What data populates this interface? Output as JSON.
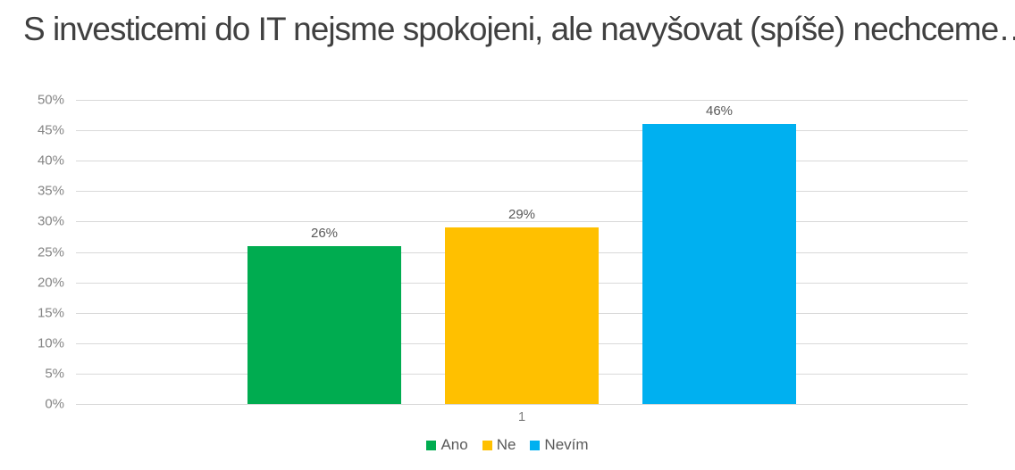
{
  "chart_data": {
    "type": "bar",
    "title": "S investicemi do IT nejsme spokojeni, ale navyšovat (spíše) nechceme…",
    "categories": [
      "1"
    ],
    "series": [
      {
        "name": "Ano",
        "values": [
          26
        ],
        "color": "#00ac50",
        "data_label": "26%"
      },
      {
        "name": "Ne",
        "values": [
          29
        ],
        "color": "#ffc000",
        "data_label": "29%"
      },
      {
        "name": "Nevím",
        "values": [
          46
        ],
        "color": "#00b0f0",
        "data_label": "46%"
      }
    ],
    "xlabel": "",
    "ylabel": "",
    "ylim": [
      0,
      50
    ],
    "ytick_step": 5,
    "yticks": [
      "0%",
      "5%",
      "10%",
      "15%",
      "20%",
      "25%",
      "30%",
      "35%",
      "40%",
      "45%",
      "50%"
    ],
    "grid": true,
    "legend_position": "bottom"
  },
  "colors": {
    "title_text": "#404040",
    "axis_text": "#848484",
    "data_label_text": "#595959",
    "gridline": "#d9d9d9",
    "background": "#ffffff"
  }
}
